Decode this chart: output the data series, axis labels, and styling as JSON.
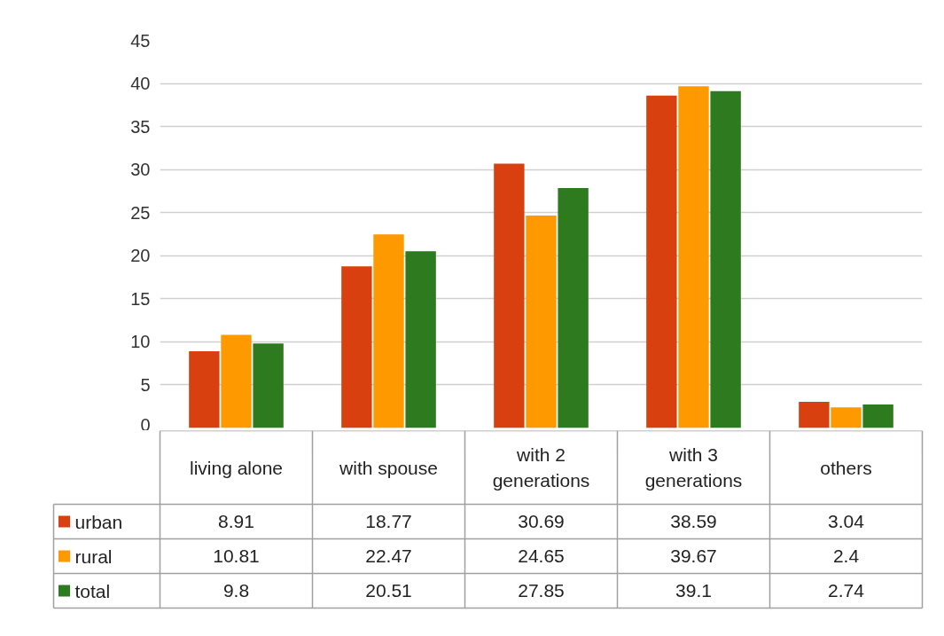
{
  "chart_data": {
    "type": "bar",
    "categories": [
      "living alone",
      "with spouse",
      "with 2 generations",
      "with 3 generations",
      "others"
    ],
    "series": [
      {
        "name": "urban",
        "color": "#d9400f",
        "values": [
          8.91,
          18.77,
          30.69,
          38.59,
          3.04
        ]
      },
      {
        "name": "rural",
        "color": "#ff9900",
        "values": [
          10.81,
          22.47,
          24.65,
          39.67,
          2.4
        ]
      },
      {
        "name": "total",
        "color": "#2e7a1e",
        "values": [
          9.8,
          20.51,
          27.85,
          39.1,
          2.74
        ]
      }
    ],
    "ylim": [
      0,
      45
    ],
    "yticks": [
      0,
      5,
      10,
      15,
      20,
      25,
      30,
      35,
      40,
      45
    ],
    "grid": "y",
    "legend": "bottom",
    "data_labels": true
  }
}
